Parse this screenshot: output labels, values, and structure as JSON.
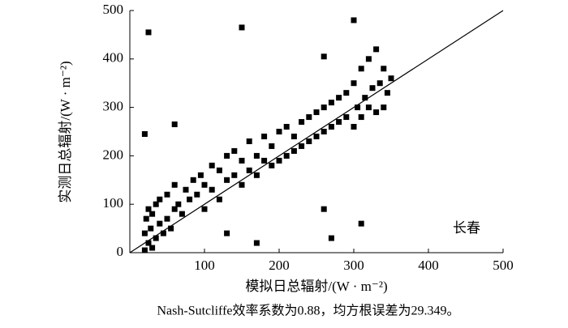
{
  "chart_data": {
    "type": "scatter",
    "x_label": "模拟日总辐射/(W · m⁻²)",
    "y_label": "实测日总辐射/(W · m⁻²)",
    "annotation": "长春",
    "caption": "Nash-Sutcliffe效率系数为0.88，均方根误差为29.349。",
    "color": "#000000",
    "xlim": [
      0,
      500
    ],
    "ylim": [
      0,
      500
    ],
    "xticks": [
      100,
      200,
      300,
      400,
      500
    ],
    "yticks": [
      0,
      100,
      200,
      300,
      400,
      500
    ],
    "x": [
      20,
      20,
      22,
      25,
      25,
      28,
      30,
      30,
      35,
      35,
      40,
      40,
      45,
      50,
      50,
      55,
      60,
      60,
      65,
      70,
      75,
      80,
      85,
      90,
      95,
      100,
      100,
      110,
      110,
      120,
      120,
      130,
      130,
      140,
      140,
      150,
      150,
      160,
      160,
      170,
      170,
      180,
      180,
      190,
      190,
      200,
      200,
      210,
      210,
      220,
      220,
      230,
      230,
      240,
      240,
      250,
      250,
      260,
      260,
      270,
      270,
      280,
      280,
      290,
      290,
      300,
      300,
      305,
      310,
      310,
      315,
      320,
      320,
      325,
      330,
      330,
      335,
      340,
      340,
      345,
      350,
      25,
      150,
      300,
      20,
      60,
      270,
      170,
      310,
      260,
      130,
      260
    ],
    "values": [
      5,
      40,
      70,
      20,
      90,
      50,
      10,
      80,
      30,
      100,
      60,
      110,
      40,
      70,
      120,
      50,
      90,
      140,
      100,
      80,
      130,
      110,
      150,
      120,
      160,
      90,
      140,
      130,
      180,
      110,
      170,
      150,
      200,
      160,
      210,
      140,
      190,
      170,
      230,
      160,
      200,
      190,
      240,
      180,
      220,
      190,
      250,
      200,
      260,
      210,
      240,
      220,
      270,
      230,
      280,
      240,
      290,
      250,
      300,
      260,
      310,
      270,
      320,
      280,
      330,
      260,
      350,
      300,
      280,
      380,
      320,
      300,
      400,
      340,
      290,
      420,
      350,
      300,
      380,
      330,
      360,
      455,
      465,
      480,
      245,
      265,
      30,
      20,
      60,
      405,
      40,
      90
    ]
  }
}
